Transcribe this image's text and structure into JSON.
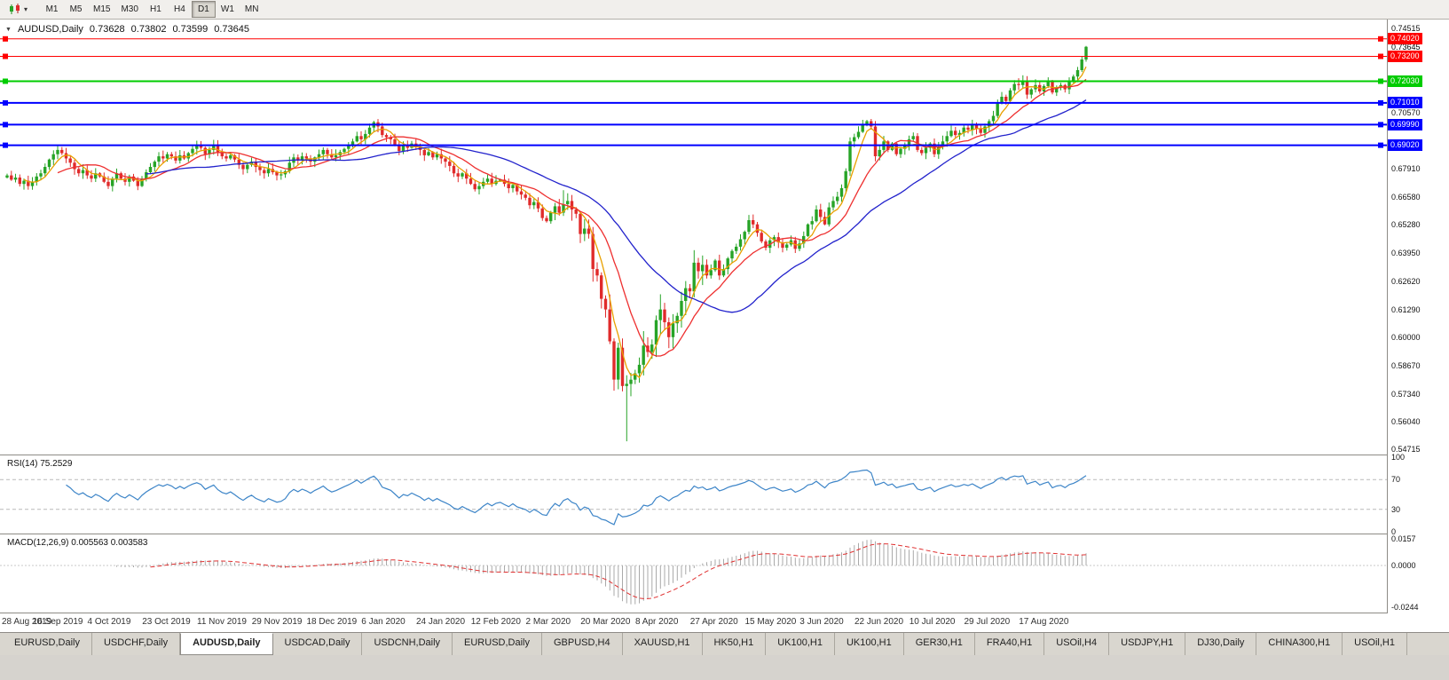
{
  "toolbar": {
    "timeframes": [
      "M1",
      "M5",
      "M15",
      "M30",
      "H1",
      "H4",
      "D1",
      "W1",
      "MN"
    ],
    "active_timeframe": "D1"
  },
  "icons": {
    "dropdown": "▾",
    "collapse": "▼"
  },
  "chart_header": {
    "symbol_period": "AUDUSD,Daily",
    "open": "0.73628",
    "high": "0.73802",
    "low": "0.73599",
    "close": "0.73645"
  },
  "price_axis": {
    "ticks": [
      {
        "price": 0.74515,
        "label": "0.74515"
      },
      {
        "price": 0.7057,
        "label": "0.70570"
      },
      {
        "price": 0.6791,
        "label": "0.67910"
      },
      {
        "price": 0.6658,
        "label": "0.66580"
      },
      {
        "price": 0.6528,
        "label": "0.65280"
      },
      {
        "price": 0.6395,
        "label": "0.63950"
      },
      {
        "price": 0.6262,
        "label": "0.62620"
      },
      {
        "price": 0.6129,
        "label": "0.61290"
      },
      {
        "price": 0.6,
        "label": "0.60000"
      },
      {
        "price": 0.5867,
        "label": "0.58670"
      },
      {
        "price": 0.5734,
        "label": "0.57340"
      },
      {
        "price": 0.5604,
        "label": "0.56040"
      },
      {
        "price": 0.54715,
        "label": "0.54715"
      }
    ],
    "current_price": 0.73645,
    "current_price_label": "0.73645"
  },
  "hlines": [
    {
      "price": 0.7402,
      "label": "0.74020",
      "color": "#FF0000",
      "width": 1
    },
    {
      "price": 0.732,
      "label": "0.73200",
      "color": "#FF0000",
      "width": 1
    },
    {
      "price": 0.7203,
      "label": "0.72030",
      "color": "#00CC00",
      "width": 2
    },
    {
      "price": 0.7101,
      "label": "0.71010",
      "color": "#0000FF",
      "width": 2
    },
    {
      "price": 0.6999,
      "label": "0.69990",
      "color": "#0000FF",
      "width": 2
    },
    {
      "price": 0.6902,
      "label": "0.69020",
      "color": "#0000FF",
      "width": 2
    }
  ],
  "rsi_panel": {
    "label": "RSI(14) 75.2529",
    "levels": [
      {
        "value": 100,
        "label": "100",
        "dashed": false
      },
      {
        "value": 70,
        "label": "70",
        "dashed": true
      },
      {
        "value": 30,
        "label": "30",
        "dashed": true
      },
      {
        "value": 0,
        "label": "0",
        "dashed": false
      }
    ]
  },
  "macd_panel": {
    "label": "MACD(12,26,9) 0.005563 0.003583",
    "axis_labels": [
      {
        "value": 0.0157,
        "label": "0.0157"
      },
      {
        "value": 0,
        "label": "0.0000"
      },
      {
        "value": -0.0244,
        "label": "-0.0244"
      }
    ]
  },
  "date_axis": [
    "28 Aug 2019",
    "16 Sep 2019",
    "4 Oct 2019",
    "23 Oct 2019",
    "11 Nov 2019",
    "29 Nov 2019",
    "18 Dec 2019",
    "6 Jan 2020",
    "24 Jan 2020",
    "12 Feb 2020",
    "2 Mar 2020",
    "20 Mar 2020",
    "8 Apr 2020",
    "27 Apr 2020",
    "15 May 2020",
    "3 Jun 2020",
    "22 Jun 2020",
    "10 Jul 2020",
    "29 Jul 2020",
    "17 Aug 2020"
  ],
  "tabs": [
    {
      "label": "EURUSD,Daily",
      "active": false
    },
    {
      "label": "USDCHF,Daily",
      "active": false
    },
    {
      "label": "AUDUSD,Daily",
      "active": true
    },
    {
      "label": "USDCAD,Daily",
      "active": false
    },
    {
      "label": "USDCNH,Daily",
      "active": false
    },
    {
      "label": "EURUSD,Daily",
      "active": false
    },
    {
      "label": "GBPUSD,H4",
      "active": false
    },
    {
      "label": "XAUUSD,H1",
      "active": false
    },
    {
      "label": "HK50,H1",
      "active": false
    },
    {
      "label": "UK100,H1",
      "active": false
    },
    {
      "label": "UK100,H1",
      "active": false
    },
    {
      "label": "GER30,H1",
      "active": false
    },
    {
      "label": "FRA40,H1",
      "active": false
    },
    {
      "label": "USOil,H4",
      "active": false
    },
    {
      "label": "USDJPY,H1",
      "active": false
    },
    {
      "label": "DJ30,Daily",
      "active": false
    },
    {
      "label": "CHINA300,H1",
      "active": false
    },
    {
      "label": "USOil,H1",
      "active": false
    }
  ],
  "chart_data": {
    "type": "candlestick",
    "symbol": "AUDUSD",
    "period": "Daily",
    "y_range": [
      0.5448,
      0.7493
    ],
    "x_labels": [
      "28 Aug 2019",
      "16 Sep 2019",
      "4 Oct 2019",
      "23 Oct 2019",
      "11 Nov 2019",
      "29 Nov 2019",
      "18 Dec 2019",
      "6 Jan 2020",
      "24 Jan 2020",
      "12 Feb 2020",
      "2 Mar 2020",
      "20 Mar 2020",
      "8 Apr 2020",
      "27 Apr 2020",
      "15 May 2020",
      "3 Jun 2020",
      "22 Jun 2020",
      "10 Jul 2020",
      "29 Jul 2020",
      "17 Aug 2020"
    ],
    "x_label_step": 13,
    "closes": [
      0.676,
      0.674,
      0.675,
      0.672,
      0.6735,
      0.671,
      0.673,
      0.6755,
      0.677,
      0.68,
      0.6835,
      0.686,
      0.688,
      0.6865,
      0.684,
      0.682,
      0.679,
      0.677,
      0.6785,
      0.676,
      0.6745,
      0.677,
      0.6755,
      0.673,
      0.671,
      0.6745,
      0.677,
      0.6745,
      0.673,
      0.6755,
      0.6735,
      0.671,
      0.6745,
      0.6775,
      0.68,
      0.6825,
      0.685,
      0.684,
      0.686,
      0.685,
      0.683,
      0.6855,
      0.684,
      0.6865,
      0.6885,
      0.69,
      0.689,
      0.686,
      0.688,
      0.69,
      0.687,
      0.685,
      0.684,
      0.6855,
      0.6835,
      0.681,
      0.679,
      0.681,
      0.6825,
      0.68,
      0.6785,
      0.677,
      0.679,
      0.6775,
      0.676,
      0.6765,
      0.678,
      0.682,
      0.6845,
      0.683,
      0.685,
      0.684,
      0.6825,
      0.6845,
      0.686,
      0.688,
      0.686,
      0.6845,
      0.6855,
      0.687,
      0.6885,
      0.69,
      0.692,
      0.6945,
      0.693,
      0.6955,
      0.6985,
      0.701,
      0.699,
      0.695,
      0.694,
      0.693,
      0.6905,
      0.6875,
      0.69,
      0.689,
      0.691,
      0.6895,
      0.688,
      0.6855,
      0.687,
      0.6845,
      0.686,
      0.684,
      0.6825,
      0.6805,
      0.677,
      0.6755,
      0.677,
      0.6745,
      0.672,
      0.6695,
      0.671,
      0.673,
      0.6745,
      0.672,
      0.6735,
      0.674,
      0.672,
      0.67,
      0.6715,
      0.6685,
      0.667,
      0.6655,
      0.662,
      0.6635,
      0.6605,
      0.656,
      0.6545,
      0.6585,
      0.6615,
      0.6585,
      0.6625,
      0.664,
      0.66,
      0.658,
      0.6485,
      0.651,
      0.6485,
      0.632,
      0.629,
      0.618,
      0.613,
      0.598,
      0.58,
      0.595,
      0.577,
      0.578,
      0.58,
      0.583,
      0.587,
      0.596,
      0.593,
      0.5965,
      0.608,
      0.613,
      0.607,
      0.6,
      0.6065,
      0.61,
      0.617,
      0.623,
      0.6215,
      0.635,
      0.631,
      0.634,
      0.629,
      0.6315,
      0.636,
      0.629,
      0.632,
      0.637,
      0.6405,
      0.6425,
      0.646,
      0.6495,
      0.655,
      0.653,
      0.649,
      0.645,
      0.642,
      0.6455,
      0.647,
      0.6445,
      0.642,
      0.6435,
      0.6455,
      0.6415,
      0.644,
      0.6475,
      0.653,
      0.6545,
      0.66,
      0.6565,
      0.653,
      0.661,
      0.664,
      0.666,
      0.67,
      0.678,
      0.692,
      0.694,
      0.6965,
      0.7,
      0.7015,
      0.699,
      0.685,
      0.688,
      0.692,
      0.688,
      0.691,
      0.686,
      0.6885,
      0.6905,
      0.693,
      0.6945,
      0.688,
      0.6865,
      0.689,
      0.691,
      0.686,
      0.6895,
      0.692,
      0.6945,
      0.697,
      0.695,
      0.696,
      0.6985,
      0.6975,
      0.7,
      0.698,
      0.696,
      0.699,
      0.7015,
      0.704,
      0.71,
      0.713,
      0.711,
      0.716,
      0.719,
      0.7185,
      0.7205,
      0.714,
      0.7165,
      0.7185,
      0.7155,
      0.718,
      0.72,
      0.715,
      0.7175,
      0.7185,
      0.7165,
      0.7205,
      0.7225,
      0.7255,
      0.7305,
      0.7365
    ],
    "spike_low": {
      "index": 147,
      "price": 0.551
    },
    "moving_averages": [
      {
        "period": 5,
        "color": "#E8A000"
      },
      {
        "period": 13,
        "color": "#EE3030"
      },
      {
        "period": 34,
        "color": "#2222CC"
      }
    ],
    "indicators": [
      {
        "name": "RSI",
        "period": 14,
        "current": 75.2529,
        "levels": [
          100,
          70,
          30,
          0
        ]
      },
      {
        "name": "MACD",
        "fast": 12,
        "slow": 26,
        "signal": 9,
        "current_main": 0.005563,
        "current_signal": 0.003583,
        "axis": [
          0.0157,
          0.0,
          -0.0244
        ]
      }
    ],
    "colors": {
      "up": "#27A427",
      "down": "#E02B2B",
      "rsi_line": "#3D85C8",
      "macd_hist": "#A9A9A9",
      "macd_signal": "#E03030"
    }
  }
}
